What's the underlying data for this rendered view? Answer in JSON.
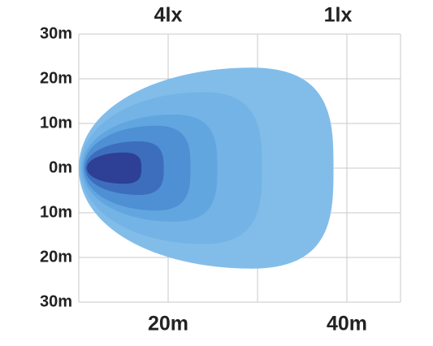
{
  "chart_data": {
    "type": "isolux",
    "annotations": [
      {
        "text": "4lx",
        "x": 20
      },
      {
        "text": "1lx",
        "x": 39
      }
    ],
    "xlim": [
      10,
      46
    ],
    "xticks": [
      {
        "value": 20,
        "label": "20m"
      },
      {
        "value": 40,
        "label": "40m"
      }
    ],
    "xgrid": [
      20,
      30,
      40
    ],
    "ylim": [
      -30,
      30
    ],
    "yticks": [
      {
        "value": 30,
        "label": "30m"
      },
      {
        "value": 20,
        "label": "20m"
      },
      {
        "value": 10,
        "label": "10m"
      },
      {
        "value": 0,
        "label": "0m"
      },
      {
        "value": -10,
        "label": "10m"
      },
      {
        "value": -20,
        "label": "20m"
      },
      {
        "value": -30,
        "label": "30m"
      }
    ],
    "grid": true,
    "contours": [
      {
        "color": "#82bdea",
        "reach": 38.5,
        "half_width": 22.5
      },
      {
        "color": "#74b3e6",
        "reach": 30.5,
        "half_width": 17
      },
      {
        "color": "#62a6e0",
        "reach": 25.5,
        "half_width": 12
      },
      {
        "color": "#4f8fd3",
        "reach": 22.5,
        "half_width": 9.5
      },
      {
        "color": "#3c6ebd",
        "reach": 19.5,
        "half_width": 6
      },
      {
        "color": "#2e3f96",
        "reach": 17,
        "half_width": 3.5
      }
    ]
  }
}
